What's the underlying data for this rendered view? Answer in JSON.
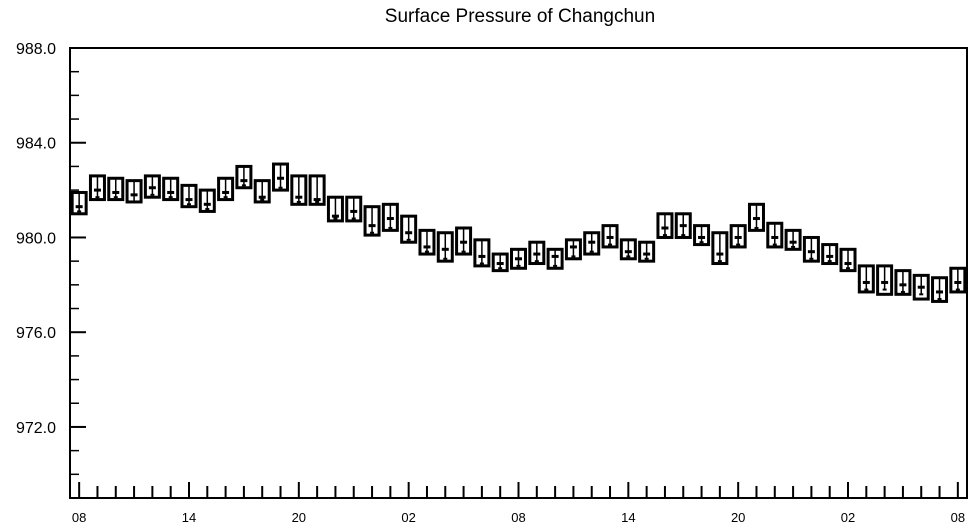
{
  "chart_data": {
    "type": "box",
    "title": "Surface Pressure of Changchun",
    "xlabel": "",
    "ylabel": "",
    "ylim": [
      969.0,
      988.0
    ],
    "yticks": [
      972.0,
      976.0,
      980.0,
      984.0,
      988.0
    ],
    "ytick_labels": [
      "972.0",
      "976.0",
      "980.0",
      "984.0",
      "988.0"
    ],
    "x_hours": [
      0,
      6,
      12,
      18,
      24,
      30,
      36,
      42,
      48
    ],
    "xtick_labels": [
      "08",
      "14",
      "20",
      "02",
      "08",
      "14",
      "20",
      "02",
      "08"
    ],
    "xlim": [
      -0.5,
      48.5
    ],
    "grid": false,
    "series": [
      {
        "times": [
          0,
          1,
          2,
          3,
          4,
          5,
          6,
          7,
          8,
          9,
          10,
          11,
          12,
          13,
          14,
          15,
          16,
          17,
          18,
          19,
          20,
          21,
          22,
          23,
          24,
          25,
          26,
          27,
          28,
          29,
          30,
          31,
          32,
          33,
          34,
          35,
          36,
          37,
          38,
          39,
          40,
          41,
          42,
          43,
          44,
          45,
          46,
          47,
          48
        ],
        "box_top": [
          981.9,
          982.6,
          982.5,
          982.4,
          982.6,
          982.5,
          982.2,
          982.0,
          982.5,
          983.0,
          982.4,
          983.1,
          982.6,
          982.6,
          981.7,
          981.7,
          981.3,
          981.4,
          980.9,
          980.3,
          980.2,
          980.4,
          979.9,
          979.3,
          979.5,
          979.8,
          979.5,
          979.9,
          980.2,
          980.5,
          979.9,
          979.8,
          981.0,
          981.0,
          980.5,
          980.2,
          980.5,
          981.4,
          980.6,
          980.3,
          980.0,
          979.7,
          979.5,
          978.8,
          978.8,
          978.6,
          978.4,
          978.3,
          978.7
        ],
        "box_bottom": [
          981.0,
          981.6,
          981.6,
          981.5,
          981.7,
          981.6,
          981.3,
          981.1,
          981.6,
          982.1,
          981.5,
          982.0,
          981.4,
          981.4,
          980.7,
          980.7,
          980.1,
          980.3,
          979.8,
          979.3,
          979.0,
          979.3,
          978.8,
          978.6,
          978.7,
          978.9,
          978.7,
          979.1,
          979.3,
          979.6,
          979.1,
          979.0,
          980.0,
          980.0,
          979.7,
          978.9,
          979.6,
          980.3,
          979.6,
          979.5,
          979.0,
          978.9,
          978.6,
          977.7,
          977.6,
          977.6,
          977.4,
          977.3,
          977.7
        ],
        "median": [
          981.3,
          982.0,
          981.9,
          981.8,
          982.1,
          981.9,
          981.6,
          981.4,
          981.9,
          982.4,
          981.7,
          982.5,
          981.7,
          981.6,
          980.9,
          981.1,
          980.5,
          980.8,
          980.2,
          979.6,
          979.5,
          979.8,
          979.2,
          978.9,
          979.1,
          979.3,
          979.2,
          979.6,
          979.8,
          980.0,
          979.4,
          979.3,
          980.4,
          980.5,
          980.0,
          979.3,
          980.0,
          980.8,
          980.0,
          979.8,
          979.4,
          979.2,
          978.9,
          978.1,
          978.1,
          978.0,
          977.9,
          977.7,
          978.1
        ],
        "min": [
          981.1,
          981.7,
          981.7,
          981.5,
          981.8,
          981.7,
          981.4,
          981.2,
          981.7,
          982.2,
          981.6,
          982.1,
          981.5,
          981.5,
          980.8,
          980.8,
          980.2,
          980.4,
          979.9,
          979.4,
          979.1,
          979.4,
          978.9,
          978.7,
          978.8,
          979.0,
          978.8,
          979.2,
          979.4,
          979.7,
          979.2,
          979.1,
          980.1,
          980.1,
          979.8,
          979.0,
          979.7,
          980.4,
          979.7,
          979.6,
          979.1,
          979.0,
          978.7,
          977.8,
          977.8,
          977.7,
          977.6,
          977.4,
          977.8
        ]
      }
    ]
  }
}
